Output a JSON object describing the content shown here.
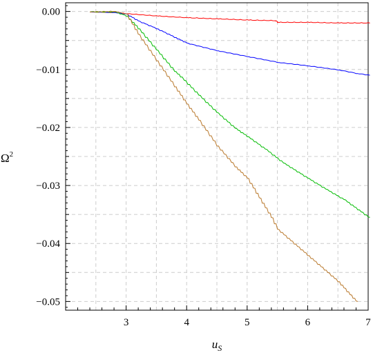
{
  "chart_data": {
    "type": "line",
    "title": "",
    "xlabel": "u",
    "xlabel_sub": "S",
    "ylabel": "Ω",
    "ylabel_sup": "2",
    "xlim": [
      2.0,
      7.0
    ],
    "ylim": [
      -0.0515,
      0.0015
    ],
    "x_ticks": [
      3,
      4,
      5,
      6,
      7
    ],
    "x_tick_labels": [
      "3",
      "4",
      "5",
      "6",
      "7"
    ],
    "y_ticks": [
      0.0,
      -0.01,
      -0.02,
      -0.03,
      -0.04,
      -0.05
    ],
    "y_tick_labels": [
      "0.00",
      "−0.01",
      "−0.02",
      "−0.03",
      "−0.04",
      "−0.05"
    ],
    "grid": true,
    "legend": "none",
    "series": [
      {
        "color": "#ff0000",
        "x": [
          2.4,
          2.8,
          3.0,
          3.5,
          4.0,
          4.5,
          5.0,
          5.45,
          5.5,
          6.0,
          6.5,
          7.0
        ],
        "y": [
          -0.0001,
          -0.0002,
          -0.0004,
          -0.0008,
          -0.0011,
          -0.0013,
          -0.0015,
          -0.0016,
          -0.0019,
          -0.0019,
          -0.002,
          -0.002
        ]
      },
      {
        "color": "#0000ff",
        "x": [
          2.4,
          2.8,
          3.0,
          3.2,
          3.5,
          3.8,
          4.0,
          4.5,
          5.0,
          5.5,
          6.0,
          6.5,
          6.8,
          7.0
        ],
        "y": [
          -0.0001,
          -0.0002,
          -0.0005,
          -0.0017,
          -0.003,
          -0.0045,
          -0.0055,
          -0.0068,
          -0.0078,
          -0.0088,
          -0.0094,
          -0.0101,
          -0.0107,
          -0.011
        ]
      },
      {
        "color": "#00bb00",
        "x": [
          2.4,
          2.8,
          3.0,
          3.2,
          3.5,
          3.8,
          3.9,
          4.2,
          4.5,
          4.8,
          5.0,
          5.3,
          5.6,
          6.0,
          6.3,
          6.6,
          7.0
        ],
        "y": [
          -0.0001,
          -0.0001,
          -0.0008,
          -0.003,
          -0.0067,
          -0.0104,
          -0.0113,
          -0.0145,
          -0.0175,
          -0.0202,
          -0.0216,
          -0.0238,
          -0.0262,
          -0.0288,
          -0.0307,
          -0.0325,
          -0.0355
        ]
      },
      {
        "color": "#b8772a",
        "x": [
          2.4,
          2.8,
          3.0,
          3.2,
          3.5,
          3.8,
          4.0,
          4.2,
          4.5,
          4.8,
          5.0,
          5.2,
          5.4,
          5.5,
          6.0,
          6.5,
          6.7,
          6.8
        ],
        "y": [
          -0.0001,
          0.0,
          -0.0005,
          -0.004,
          -0.0085,
          -0.013,
          -0.016,
          -0.0188,
          -0.0232,
          -0.0268,
          -0.0288,
          -0.0322,
          -0.0356,
          -0.0376,
          -0.0421,
          -0.0466,
          -0.0489,
          -0.05
        ]
      }
    ]
  }
}
